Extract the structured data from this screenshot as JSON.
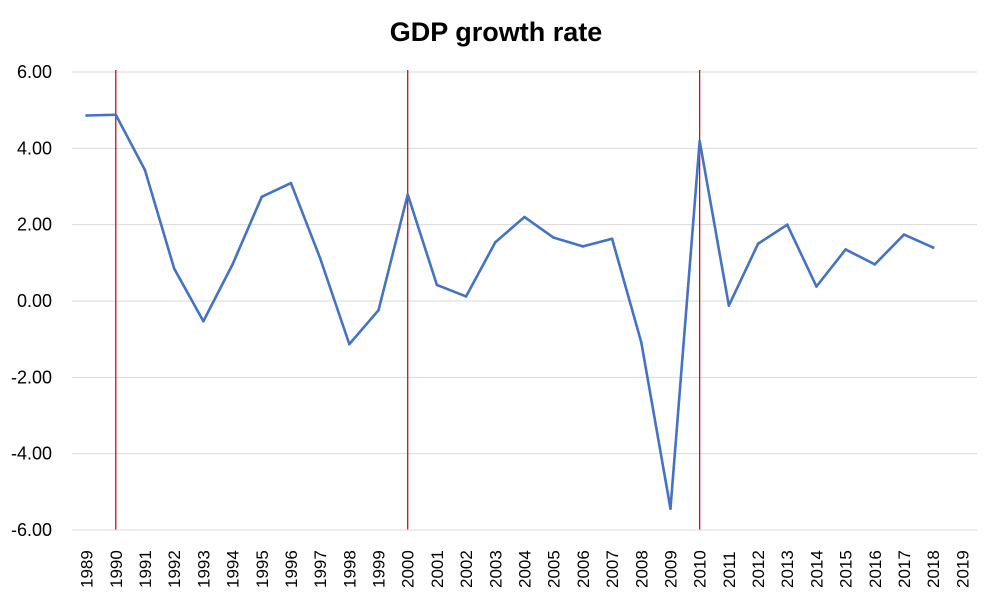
{
  "chart_data": {
    "type": "line",
    "title": "GDP growth rate",
    "xlabel": "",
    "ylabel": "",
    "ylim": [
      -6,
      6
    ],
    "ytick_values": [
      6,
      4,
      2,
      0,
      -2,
      -4,
      -6
    ],
    "ytick_labels": [
      "6.00",
      "4.00",
      "2.00",
      "0.00",
      "-2.00",
      "-4.00",
      "-6.00"
    ],
    "categories": [
      "1989",
      "1990",
      "1991",
      "1992",
      "1993",
      "1994",
      "1995",
      "1996",
      "1997",
      "1998",
      "1999",
      "2000",
      "2001",
      "2002",
      "2003",
      "2004",
      "2005",
      "2006",
      "2007",
      "2008",
      "2009",
      "2010",
      "2011",
      "2012",
      "2013",
      "2014",
      "2015",
      "2016",
      "2017",
      "2018",
      "2019"
    ],
    "series": [
      {
        "color": "#4472C4",
        "values": [
          4.86,
          4.88,
          3.43,
          0.85,
          -0.53,
          0.96,
          2.73,
          3.09,
          1.12,
          -1.13,
          -0.24,
          2.79,
          0.42,
          0.12,
          1.54,
          2.2,
          1.66,
          1.43,
          1.63,
          -1.08,
          -5.44,
          4.19,
          -0.12,
          1.5,
          2.0,
          0.38,
          1.35,
          0.96,
          1.74,
          1.4,
          null
        ]
      }
    ],
    "reference_lines": {
      "color": "#C00000",
      "at_categories": [
        "1990",
        "2000",
        "2010"
      ]
    },
    "grid": true,
    "gridline_color": "#D9D9D9",
    "legend": "none"
  }
}
